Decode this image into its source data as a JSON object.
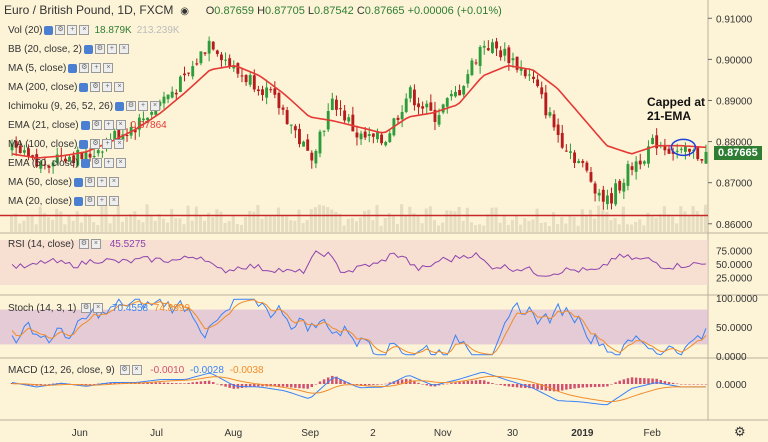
{
  "header": {
    "symbol": "Euro / British Pound, 1D, FXCM",
    "ohlc": {
      "o_label": "O",
      "o": "0.87659",
      "h_label": "H",
      "h": "0.87705",
      "l_label": "L",
      "l": "0.87542",
      "c_label": "C",
      "c": "0.87665",
      "change": "+0.00006 (+0.01%)"
    }
  },
  "indicators": [
    {
      "label": "Vol (20)",
      "value": "18.879K",
      "value2": "213.239K"
    },
    {
      "label": "BB (20, close, 2)"
    },
    {
      "label": "MA (5, close)"
    },
    {
      "label": "MA (200, close)"
    },
    {
      "label": "Ichimoku (9, 26, 52, 26)"
    },
    {
      "label": "EMA (21, close)",
      "value": "0.87864"
    },
    {
      "label": "MA (100, close)"
    },
    {
      "label": "EMA (50, close)"
    },
    {
      "label": "MA (50, close)"
    },
    {
      "label": "MA (20, close)"
    }
  ],
  "annotation": {
    "line1": "Capped at",
    "line2": "21-EMA"
  },
  "last_price": "0.87665",
  "price_axis": [
    "0.91000",
    "0.90000",
    "0.89000",
    "0.88000",
    "0.87000",
    "0.86000"
  ],
  "time_axis": [
    "Jun",
    "Jul",
    "Aug",
    "Sep",
    "2",
    "Nov",
    "30",
    "2019",
    "Feb"
  ],
  "rsi": {
    "label": "RSI (14, close)",
    "value": "45.5275",
    "axis": [
      "75.0000",
      "50.0000",
      "25.0000"
    ]
  },
  "stoch": {
    "label": "Stoch (14, 3, 1)",
    "k": "70.4558",
    "d": "74.8999",
    "axis": [
      "100.0000",
      "50.0000",
      "0.0000"
    ]
  },
  "macd": {
    "label": "MACD (12, 26, close, 9)",
    "hist": "-0.0010",
    "macd": "-0.0028",
    "signal": "-0.0038",
    "axis": [
      "0.0000"
    ]
  },
  "colors": {
    "background": "#fdf4d8",
    "up": "#2e9c3b",
    "down": "#b71c1c",
    "ema": "#e53935",
    "rsi": "#8e44ad",
    "stoch_k": "#3b82f6",
    "stoch_d": "#f08c2a",
    "macd": "#3b82f6",
    "signal": "#f08c2a",
    "hist": "#d0506e",
    "support": "#c62828"
  },
  "chart_data": {
    "type": "candlestick",
    "title": "Euro / British Pound, 1D, FXCM",
    "x": [
      "Jun",
      "Jul",
      "Aug",
      "Sep",
      "2",
      "Nov",
      "30",
      "2019",
      "Feb"
    ],
    "close_path": [
      0.878,
      0.874,
      0.877,
      0.876,
      0.881,
      0.884,
      0.89,
      0.895,
      0.905,
      0.897,
      0.894,
      0.887,
      0.876,
      0.89,
      0.881,
      0.88,
      0.892,
      0.886,
      0.892,
      0.904,
      0.901,
      0.895,
      0.882,
      0.874,
      0.865,
      0.874,
      0.88,
      0.877,
      0.8767
    ],
    "ema21": [
      0.877,
      0.876,
      0.8765,
      0.8775,
      0.88,
      0.883,
      0.887,
      0.892,
      0.8975,
      0.8985,
      0.896,
      0.8915,
      0.886,
      0.885,
      0.8835,
      0.882,
      0.886,
      0.887,
      0.889,
      0.896,
      0.8985,
      0.8975,
      0.893,
      0.886,
      0.879,
      0.877,
      0.879,
      0.879,
      0.8786
    ],
    "support_level": 0.862,
    "ylim": [
      0.858,
      0.9125
    ],
    "annotation_point": {
      "x": "Feb",
      "y": 0.8786
    }
  }
}
